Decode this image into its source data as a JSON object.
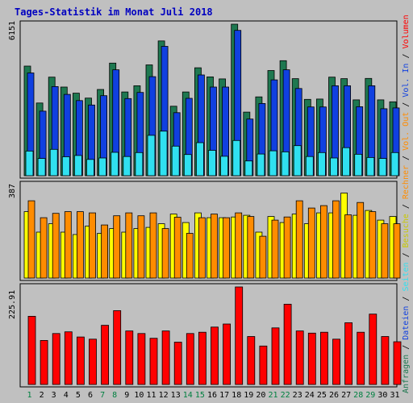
{
  "title": "Tages-Statistik im Monat Juli 2018",
  "chart_data": {
    "type": "bar",
    "categories": [
      "1",
      "2",
      "3",
      "4",
      "5",
      "6",
      "7",
      "8",
      "9",
      "10",
      "11",
      "12",
      "13",
      "14",
      "15",
      "16",
      "17",
      "18",
      "19",
      "20",
      "21",
      "22",
      "23",
      "24",
      "25",
      "26",
      "27",
      "28",
      "29",
      "30",
      "31"
    ],
    "weekend_days": [
      "1",
      "7",
      "8",
      "14",
      "15",
      "21",
      "22",
      "28",
      "29"
    ],
    "panels": [
      {
        "id": "top",
        "ymax_label": "6151",
        "ylim": [
          0,
          6151
        ],
        "series": [
          {
            "name": "Anfragen",
            "color": "#1e7850",
            "values": [
              4450,
              2950,
              4000,
              3600,
              3350,
              3150,
              3500,
              4570,
              3400,
              3650,
              4500,
              5470,
              2820,
              3400,
              4380,
              4010,
              3930,
              6151,
              2580,
              3200,
              4270,
              4670,
              3940,
              3100,
              3110,
              4000,
              3940,
              3080,
              3950,
              3080,
              3000
            ]
          },
          {
            "name": "Dateien",
            "color": "#1040e0",
            "values": [
              4170,
              2620,
              3620,
              3300,
              3050,
              2870,
              3250,
              4300,
              3130,
              3380,
              4020,
              5250,
              2560,
              3140,
              4090,
              3600,
              3600,
              5900,
              2300,
              2930,
              3890,
              4300,
              3540,
              2790,
              2790,
              3650,
              3650,
              2800,
              3650,
              2720,
              2750
            ]
          },
          {
            "name": "Seiten",
            "color": "#30e0f0",
            "values": [
              1000,
              700,
              1070,
              770,
              820,
              660,
              720,
              950,
              780,
              940,
              1640,
              1810,
              1200,
              860,
              1340,
              1030,
              790,
              1430,
              600,
              880,
              1010,
              970,
              1220,
              780,
              940,
              720,
              1140,
              870,
              740,
              700,
              940
            ]
          }
        ]
      },
      {
        "id": "mid",
        "ymax_label": "387",
        "ylim": [
          0,
          387
        ],
        "series": [
          {
            "name": "Besuche",
            "color": "#ffff00",
            "values": [
              275,
              190,
              225,
              190,
              180,
              215,
              185,
              205,
              190,
              205,
              210,
              225,
              265,
              230,
              270,
              250,
              250,
              253,
              260,
              190,
              255,
              230,
              265,
              225,
              270,
              270,
              352,
              260,
              280,
              240,
              255
            ]
          },
          {
            "name": "Rechner",
            "color": "#ff8c00",
            "values": [
              320,
              250,
              268,
              275,
              275,
              270,
              220,
              258,
              270,
              258,
              270,
              205,
              252,
              185,
              250,
              265,
              250,
              270,
              255,
              173,
              240,
              253,
              320,
              290,
              300,
              320,
              262,
              313,
              275,
              225,
              225
            ]
          }
        ]
      },
      {
        "id": "bottom",
        "ymax_label": "225.91",
        "ylim": [
          0,
          225.91
        ],
        "series": [
          {
            "name": "Volumen",
            "color": "#ff0000",
            "values": [
              158,
              102,
              118,
              122,
              110,
              105,
              137,
              171,
              124,
              118,
              107,
              124,
              98,
              118,
              121,
              133,
              140,
              225.91,
              111,
              89,
              131,
              186,
              124,
              119,
              121,
              105,
              143,
              121,
              163,
              111,
              99
            ]
          }
        ]
      }
    ],
    "side_legend": [
      {
        "text": "Anfragen",
        "color": "#1e7850"
      },
      {
        "text": "Dateien",
        "color": "#1040e0"
      },
      {
        "text": "Seiten",
        "color": "#30e0f0"
      },
      {
        "text": "Besuche",
        "color": "#c8c800"
      },
      {
        "text": "Rechner",
        "color": "#ff8c00"
      },
      {
        "text": "Vol. Out",
        "color": "#ff8c00"
      },
      {
        "text": "Vol. In",
        "color": "#1040e0"
      },
      {
        "text": "Volumen",
        "color": "#ff0000"
      }
    ],
    "separator": " / ",
    "colors": {
      "weekday_label": "#000000",
      "weekend_label": "#008040",
      "title": "#0000c0",
      "background": "#c0c0c0"
    }
  }
}
